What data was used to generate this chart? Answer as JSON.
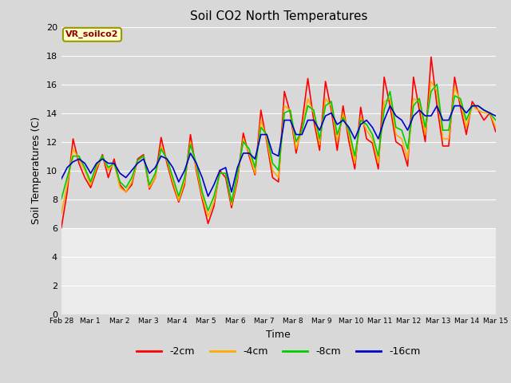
{
  "title": "Soil CO2 North Temperatures",
  "xlabel": "Time",
  "ylabel": "Soil Temperatures (C)",
  "ylim": [
    0,
    20
  ],
  "yticks": [
    0,
    2,
    4,
    6,
    8,
    10,
    12,
    14,
    16,
    18,
    20
  ],
  "fig_bg_color": "#d8d8d8",
  "plot_bg_color": "#d8d8d8",
  "legend_label": "VR_soilco2",
  "line_colors": {
    "-2cm": "#ff0000",
    "-4cm": "#ffaa00",
    "-8cm": "#00cc00",
    "-16cm": "#0000cc"
  },
  "tick_labels": [
    "Feb 28",
    "Mar 1",
    "Mar 2",
    "Mar 3",
    "Mar 4",
    "Mar 5",
    "Mar 6",
    "Mar 7",
    "Mar 8",
    "Mar 9",
    "Mar 10",
    "Mar 11",
    "Mar 12",
    "Mar 13",
    "Mar 14",
    "Mar 15"
  ],
  "series": {
    "-2cm": [
      6.0,
      8.5,
      12.2,
      10.5,
      9.5,
      8.8,
      10.0,
      11.1,
      9.5,
      10.8,
      9.0,
      8.5,
      9.0,
      10.8,
      11.1,
      8.7,
      9.5,
      12.3,
      10.5,
      9.0,
      7.8,
      9.0,
      12.5,
      10.0,
      8.0,
      6.3,
      7.5,
      10.0,
      9.5,
      7.4,
      9.3,
      12.6,
      11.0,
      9.7,
      14.2,
      12.0,
      9.5,
      9.2,
      15.5,
      14.0,
      11.2,
      13.3,
      16.4,
      13.5,
      11.4,
      16.2,
      14.2,
      11.4,
      14.5,
      12.0,
      10.1,
      14.4,
      12.2,
      11.9,
      10.1,
      16.5,
      14.5,
      12.0,
      11.7,
      10.3,
      16.5,
      14.2,
      12.0,
      17.9,
      14.5,
      11.7,
      11.7,
      16.5,
      14.4,
      12.5,
      14.8,
      14.2,
      13.5,
      14.0,
      12.7
    ],
    "-4cm": [
      7.0,
      9.0,
      11.5,
      10.8,
      10.0,
      9.0,
      10.2,
      11.0,
      10.0,
      10.5,
      8.8,
      8.5,
      9.2,
      10.7,
      11.0,
      8.8,
      9.5,
      11.7,
      10.7,
      9.2,
      7.9,
      9.2,
      12.0,
      10.2,
      8.2,
      6.8,
      7.8,
      9.8,
      9.8,
      7.6,
      9.5,
      12.2,
      11.2,
      9.8,
      13.5,
      12.2,
      10.0,
      9.5,
      14.5,
      14.2,
      11.5,
      12.8,
      15.0,
      14.0,
      11.8,
      15.0,
      14.5,
      12.0,
      14.0,
      12.5,
      10.5,
      13.7,
      12.8,
      12.2,
      10.5,
      14.8,
      15.0,
      12.5,
      12.2,
      10.8,
      15.0,
      14.8,
      12.5,
      16.2,
      15.5,
      12.2,
      12.2,
      15.8,
      14.8,
      13.0,
      14.5,
      14.2,
      14.0,
      14.0,
      13.0
    ],
    "-8cm": [
      8.0,
      9.5,
      11.0,
      11.0,
      10.2,
      9.2,
      10.4,
      11.0,
      10.2,
      10.5,
      9.2,
      8.8,
      9.5,
      10.7,
      11.0,
      9.0,
      9.8,
      11.5,
      10.8,
      9.5,
      8.2,
      9.5,
      11.8,
      10.5,
      8.5,
      7.2,
      8.2,
      9.8,
      9.8,
      7.8,
      9.8,
      12.0,
      11.5,
      10.2,
      13.0,
      12.5,
      10.5,
      10.0,
      14.0,
      14.2,
      12.0,
      12.8,
      14.5,
      14.2,
      12.2,
      14.5,
      14.8,
      12.5,
      13.7,
      12.8,
      11.0,
      13.5,
      13.2,
      12.5,
      11.0,
      14.2,
      15.5,
      13.0,
      12.8,
      11.5,
      14.5,
      15.0,
      13.0,
      15.5,
      16.0,
      12.8,
      12.8,
      15.2,
      15.0,
      13.5,
      14.5,
      14.5,
      14.2,
      14.0,
      13.5
    ],
    "-16cm": [
      9.4,
      10.2,
      10.6,
      10.8,
      10.5,
      9.8,
      10.5,
      10.8,
      10.5,
      10.5,
      9.8,
      9.5,
      10.0,
      10.5,
      10.8,
      9.8,
      10.2,
      11.0,
      10.8,
      10.2,
      9.2,
      10.0,
      11.2,
      10.5,
      9.5,
      8.2,
      9.0,
      10.0,
      10.2,
      8.5,
      10.2,
      11.2,
      11.2,
      10.8,
      12.5,
      12.5,
      11.2,
      11.0,
      13.5,
      13.5,
      12.5,
      12.5,
      13.5,
      13.5,
      12.8,
      13.8,
      14.0,
      13.2,
      13.5,
      13.0,
      12.2,
      13.2,
      13.5,
      13.0,
      12.2,
      13.5,
      14.5,
      13.8,
      13.5,
      12.8,
      13.8,
      14.2,
      13.8,
      13.8,
      14.5,
      13.5,
      13.5,
      14.5,
      14.5,
      14.0,
      14.5,
      14.5,
      14.2,
      14.0,
      13.8
    ]
  }
}
